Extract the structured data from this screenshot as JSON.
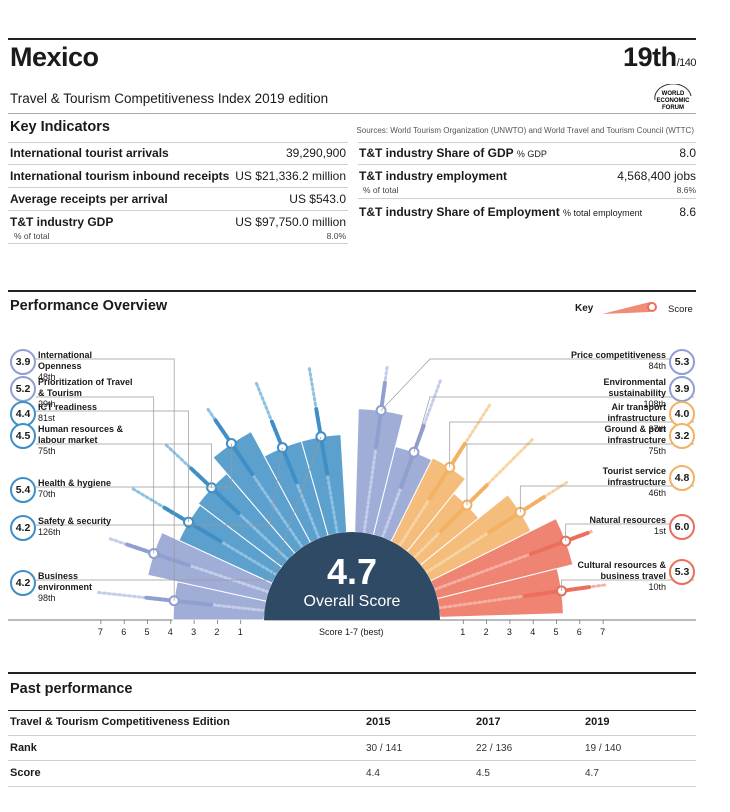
{
  "header": {
    "country": "Mexico",
    "rank": "19th",
    "rank_total": "/140",
    "subtitle": "Travel & Tourism Competitiveness Index 2019 edition",
    "logo_lines": [
      "WORLD",
      "ECONOMIC",
      "FORUM"
    ]
  },
  "key_indicators": {
    "title": "Key Indicators",
    "sources": "Sources: World Tourism Organization (UNWTO) and World Travel and Tourism Council (WTTC)",
    "left": [
      {
        "label": "International tourist arrivals",
        "value": "39,290,900"
      },
      {
        "label": "International tourism inbound receipts",
        "value": "US $21,336.2 million"
      },
      {
        "label": "Average receipts per arrival",
        "value": "US $543.0"
      },
      {
        "label": "T&T industry GDP",
        "value": "US $97,750.0 million",
        "sub_label": "% of total",
        "sub_value": "8.0%"
      }
    ],
    "right": [
      {
        "label": "T&T industry Share of GDP",
        "unit": "% GDP",
        "value": "8.0"
      },
      {
        "label": "T&T industry employment",
        "value": "4,568,400 jobs",
        "sub_label": "% of total",
        "sub_value": "8.6%"
      },
      {
        "label": "T&T industry Share of Employment",
        "unit": "% total employment",
        "value": "8.6"
      }
    ]
  },
  "performance": {
    "title": "Performance Overview",
    "key_label": "Key",
    "key_score_label": "Score",
    "overall_score": "4.7",
    "overall_label": "Overall Score",
    "axis_caption": "Score 1-7 (best)",
    "axis_left": [
      "7",
      "6",
      "5",
      "4",
      "3",
      "2",
      "1"
    ],
    "axis_right": [
      "1",
      "2",
      "3",
      "4",
      "5",
      "6",
      "7"
    ],
    "colors": {
      "blue": "#3f8fc6",
      "lavender": "#8f9fd0",
      "orange": "#f3b164",
      "coral": "#ec6f5b",
      "center": "#2e4a64"
    },
    "left_pillars": [
      {
        "name": "International Openness",
        "rank": "48th",
        "score": 3.9,
        "label": "3.9"
      },
      {
        "name": "Prioritization of Travel & Tourism",
        "rank": "29th",
        "score": 5.2,
        "label": "5.2"
      },
      {
        "name": "ICT readiness",
        "rank": "81st",
        "score": 4.4,
        "label": "4.4"
      },
      {
        "name": "Human resources & labour market",
        "rank": "75th",
        "score": 4.5,
        "label": "4.5"
      },
      {
        "name": "Health & hygiene",
        "rank": "70th",
        "score": 5.4,
        "label": "5.4"
      },
      {
        "name": "Safety & security",
        "rank": "126th",
        "score": 4.2,
        "label": "4.2"
      },
      {
        "name": "Business environment",
        "rank": "98th",
        "score": 4.2,
        "label": "4.2"
      }
    ],
    "right_pillars": [
      {
        "name": "Price competitiveness",
        "rank": "84th",
        "score": 5.3,
        "label": "5.3"
      },
      {
        "name": "Environmental sustainability",
        "rank": "108th",
        "score": 3.9,
        "label": "3.9"
      },
      {
        "name": "Air transport infrastructure",
        "rank": "37th",
        "score": 4.0,
        "label": "4.0"
      },
      {
        "name": "Ground & port infrastructure",
        "rank": "75th",
        "score": 3.2,
        "label": "3.2"
      },
      {
        "name": "Tourist service infrastructure",
        "rank": "46th",
        "score": 4.8,
        "label": "4.8"
      },
      {
        "name": "Natural resources",
        "rank": "1st",
        "score": 6.0,
        "label": "6.0"
      },
      {
        "name": "Cultural resources & business travel",
        "rank": "10th",
        "score": 5.3,
        "label": "5.3"
      }
    ]
  },
  "past": {
    "title": "Past performance",
    "header": [
      "Travel & Tourism Competitiveness Edition",
      "2015",
      "2017",
      "2019"
    ],
    "rows": [
      {
        "label": "Rank",
        "values": [
          "30 / 141",
          "22 / 136",
          "19 / 140"
        ]
      },
      {
        "label": "Score",
        "values": [
          "4.4",
          "4.5",
          "4.7"
        ]
      }
    ]
  }
}
